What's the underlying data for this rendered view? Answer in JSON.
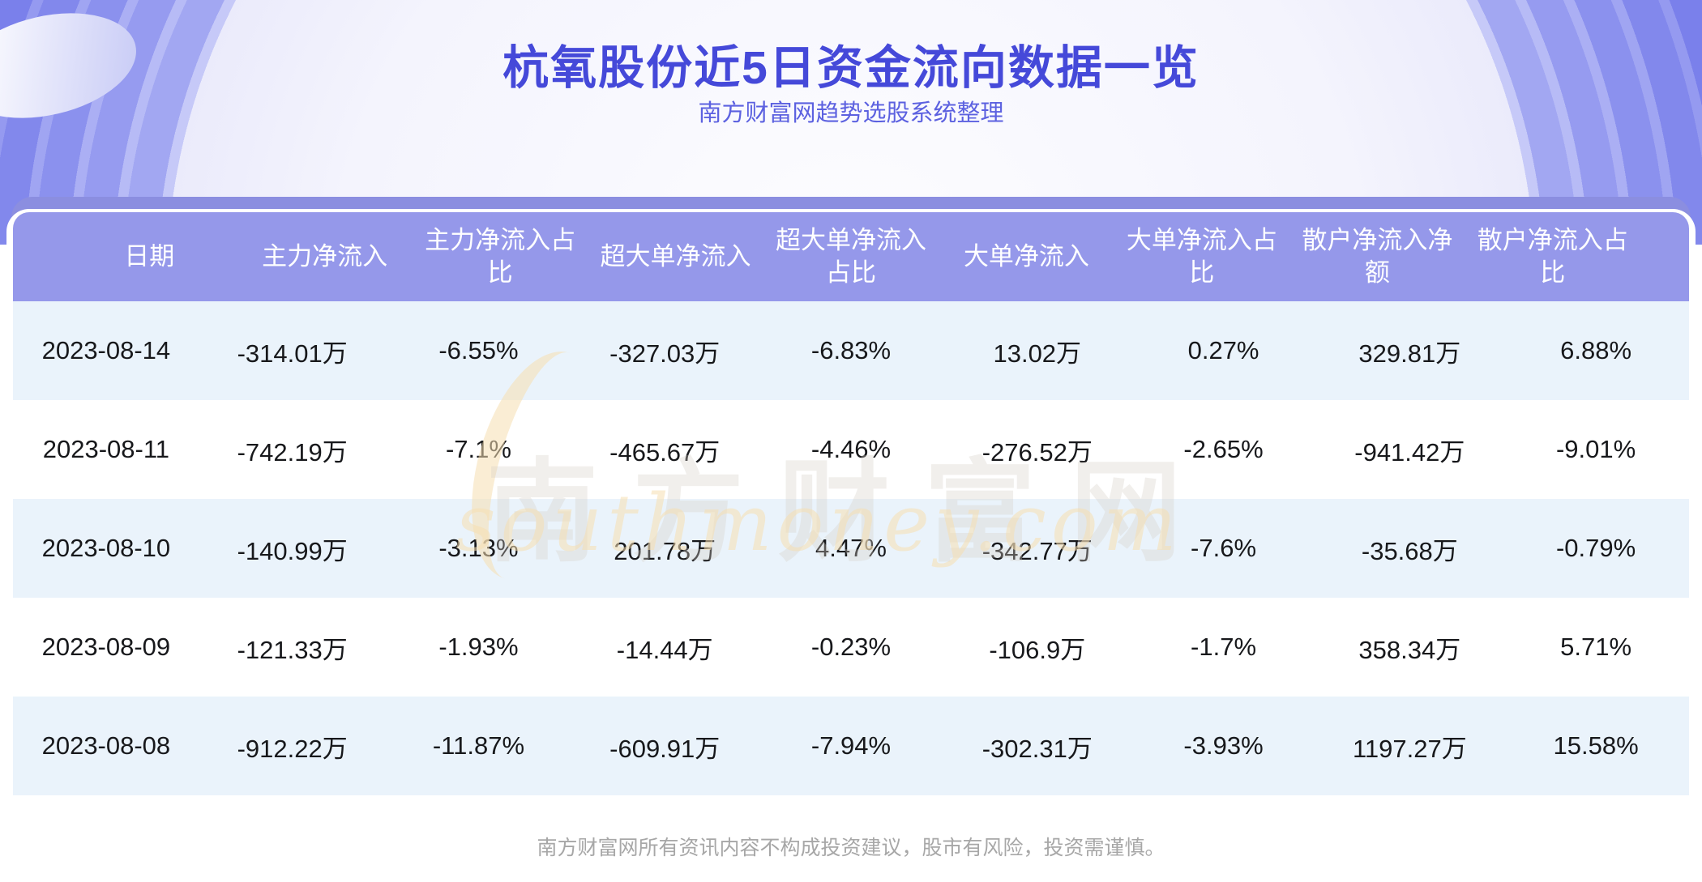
{
  "chart_data": {
    "type": "table",
    "title": "杭氧股份近5日资金流向数据一览",
    "subtitle": "南方财富网趋势选股系统整理",
    "columns": [
      "日期",
      "主力净流入",
      "主力净流入占比",
      "超大单净流入",
      "超大单净流入占比",
      "大单净流入",
      "大单净流入占比",
      "散户净流入净额",
      "散户净流入占比"
    ],
    "rows": [
      [
        "2023-08-14",
        "-314.01万",
        "-6.55%",
        "-327.03万",
        "-6.83%",
        "13.02万",
        "0.27%",
        "329.81万",
        "6.88%"
      ],
      [
        "2023-08-11",
        "-742.19万",
        "-7.1%",
        "-465.67万",
        "-4.46%",
        "-276.52万",
        "-2.65%",
        "-941.42万",
        "-9.01%"
      ],
      [
        "2023-08-10",
        "-140.99万",
        "-3.13%",
        "201.78万",
        "4.47%",
        "-342.77万",
        "-7.6%",
        "-35.68万",
        "-0.79%"
      ],
      [
        "2023-08-09",
        "-121.33万",
        "-1.93%",
        "-14.44万",
        "-0.23%",
        "-106.9万",
        "-1.7%",
        "358.34万",
        "5.71%"
      ],
      [
        "2023-08-08",
        "-912.22万",
        "-11.87%",
        "-609.91万",
        "-7.94%",
        "-302.31万",
        "-3.93%",
        "1197.27万",
        "15.58%"
      ]
    ]
  },
  "watermark": {
    "cn": "南方财富网",
    "en": "southmoney.com"
  },
  "footer": {
    "disclaimer": "南方财富网所有资讯内容不构成投资建议，股市有风险，投资需谨慎。"
  },
  "colors": {
    "banner_purple": "#6368e8",
    "band_purple": "#8b8ee0",
    "header_strip_purple": "#9598ea",
    "row_alt_blue": "#eaf3fb",
    "title_indigo": "#4549d9",
    "subtitle_indigo": "#5c61e0",
    "cell_text": "#17181b",
    "footer_gray": "#a7a7a7",
    "watermark_cream": "#f6dEb0"
  }
}
